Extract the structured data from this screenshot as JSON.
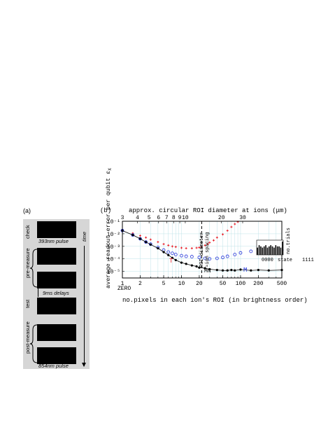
{
  "panel_a": {
    "label": "(a)",
    "time_label": "time",
    "stages": [
      "check",
      "pre-measure",
      "test",
      "post-measure"
    ],
    "captions": [
      "393nm pulse",
      "9ms delays",
      "854nm pulse"
    ]
  },
  "panel_b": {
    "label": "(b)",
    "top_axis_label": "approx. circular ROI diameter at ions (μm)",
    "x_axis_label": "no.pixels in each ion's ROI (in brightness order)",
    "y_axis_label": "average readout error per qubit ε",
    "y_axis_subscript": "X",
    "roi_annotation": [
      "ROI diameter",
      "≈ion spacing"
    ],
    "series_labels": [
      "T",
      "M",
      "MN"
    ],
    "zero_label": "ZERO",
    "inset_xlabel_left": "0000",
    "inset_xlabel_mid": "state",
    "inset_xlabel_right": "1111",
    "inset_ylabel": "no.trials"
  },
  "chart_data": [
    {
      "type": "scatter",
      "x_scale": "log",
      "y_scale": "log",
      "xlim": [
        1,
        500
      ],
      "ylim": [
        3e-06,
        0.1
      ],
      "x_ticks": [
        1,
        2,
        5,
        10,
        20,
        50,
        100,
        200,
        500
      ],
      "x_tick_labels": [
        "1",
        "2",
        "5",
        "10",
        "20",
        "50",
        "100",
        "200",
        "500"
      ],
      "y_ticks": [
        1e-05,
        0.0001,
        0.001,
        0.01,
        0.1
      ],
      "y_tick_labels": [
        "10⁻⁵",
        "10⁻⁴",
        "10⁻³",
        "10⁻²",
        "10⁻¹"
      ],
      "top_ticks": [
        3,
        4,
        5,
        6,
        7,
        8,
        9,
        10,
        20,
        30
      ],
      "top_tick_labels": [
        "3",
        "4",
        "5",
        "6",
        "7",
        "8",
        "9",
        "10",
        "20",
        "30"
      ],
      "roi_line_x": 22,
      "series": [
        {
          "name": "T",
          "color": "#e8202a",
          "x": [
            1,
            1.5,
            2,
            2.5,
            3,
            4,
            5,
            6,
            7,
            8,
            10,
            12,
            15,
            18,
            20,
            22,
            25,
            28,
            30,
            35,
            40,
            50,
            60,
            70,
            80,
            90
          ],
          "y": [
            0.02,
            0.011,
            0.007,
            0.005,
            0.0035,
            0.0022,
            0.0015,
            0.0012,
            0.001,
            0.0009,
            0.00075,
            0.0007,
            0.0007,
            0.00075,
            0.0008,
            0.0009,
            0.0012,
            0.0015,
            0.002,
            0.003,
            0.005,
            0.009,
            0.018,
            0.035,
            0.06,
            0.09
          ]
        },
        {
          "name": "M",
          "color": "#2030d8",
          "x": [
            1,
            1.5,
            2,
            2.5,
            3,
            4,
            5,
            6,
            7,
            8,
            10,
            12,
            15,
            20,
            25,
            30,
            40,
            50,
            60,
            80,
            100,
            150,
            200,
            300,
            400,
            500
          ],
          "y": [
            0.018,
            0.008,
            0.004,
            0.0022,
            0.0015,
            0.0008,
            0.0005,
            0.00035,
            0.00028,
            0.00022,
            0.00018,
            0.00016,
            0.00015,
            0.00013,
            0.00011,
            0.0001,
            0.00011,
            0.00013,
            0.00016,
            0.00022,
            0.0003,
            0.0004,
            0.00045,
            0.00048,
            0.0005,
            0.0005
          ]
        },
        {
          "name": "MN",
          "color": "#000000",
          "x": [
            1,
            1.5,
            2,
            2.5,
            3,
            4,
            5,
            6,
            7,
            8,
            10,
            12,
            15,
            18,
            20,
            25,
            30,
            40,
            50,
            60,
            70,
            80,
            100,
            150,
            200,
            300,
            500
          ],
          "y": [
            0.018,
            0.008,
            0.004,
            0.0022,
            0.0014,
            0.0007,
            0.00035,
            0.0002,
            0.00012,
            8e-05,
            5e-05,
            4e-05,
            3e-05,
            2.5e-05,
            2e-05,
            1.8e-05,
            1.5e-05,
            1.3e-05,
            1.2e-05,
            1.2e-05,
            1.3e-05,
            1.2e-05,
            1.4e-05,
            1.2e-05,
            1.3e-05,
            1.2e-05,
            1.3e-05
          ]
        }
      ]
    },
    {
      "type": "bar",
      "title": "",
      "xlabel": "state",
      "ylabel": "no.trials",
      "values": [
        6,
        8,
        7,
        6,
        7,
        8,
        6,
        7,
        8,
        7,
        6,
        8,
        7,
        7,
        6,
        11
      ]
    }
  ]
}
